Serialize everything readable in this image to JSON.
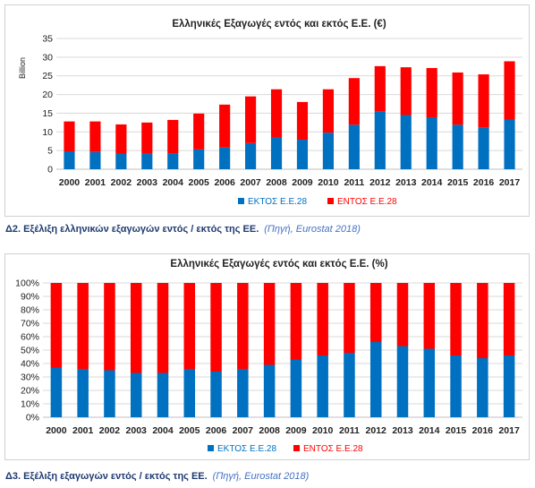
{
  "chart_data": [
    {
      "type": "bar",
      "stacked": true,
      "title": "Ελληνικές Εξαγωγές εντός και εκτός Ε.Ε. (€)",
      "ylabel": "Billion",
      "ylim": [
        0,
        35
      ],
      "yticks": [
        "0",
        "5",
        "10",
        "15",
        "20",
        "25",
        "30",
        "35"
      ],
      "categories": [
        "2000",
        "2001",
        "2002",
        "2003",
        "2004",
        "2005",
        "2006",
        "2007",
        "2008",
        "2009",
        "2010",
        "2011",
        "2012",
        "2013",
        "2014",
        "2015",
        "2016",
        "2017"
      ],
      "series": [
        {
          "name": "ΕΚΤΟΣ Ε.Ε.28",
          "color": "#0070c0",
          "values": [
            4.8,
            4.6,
            4.2,
            4.1,
            4.3,
            5.3,
            5.8,
            7.0,
            8.5,
            7.9,
            9.8,
            11.9,
            15.4,
            14.5,
            13.9,
            11.9,
            11.1,
            13.3
          ]
        },
        {
          "name": "ΕΝΤΟΣ Ε.Ε.28",
          "color": "#ff0000",
          "values": [
            8.0,
            8.2,
            7.8,
            8.4,
            8.9,
            9.6,
            11.5,
            12.5,
            12.9,
            10.1,
            11.6,
            12.5,
            12.2,
            12.8,
            13.2,
            14.0,
            14.3,
            15.6
          ]
        }
      ],
      "legend_position": "bottom",
      "grid": true
    },
    {
      "type": "bar",
      "stacked": true,
      "title": "Ελληνικές Εξαγωγές εντός και εκτός Ε.Ε. (%)",
      "ylim": [
        0,
        100
      ],
      "yticks": [
        "0%",
        "10%",
        "20%",
        "30%",
        "40%",
        "50%",
        "60%",
        "70%",
        "80%",
        "90%",
        "100%"
      ],
      "categories": [
        "2000",
        "2001",
        "2002",
        "2003",
        "2004",
        "2005",
        "2006",
        "2007",
        "2008",
        "2009",
        "2010",
        "2011",
        "2012",
        "2013",
        "2014",
        "2015",
        "2016",
        "2017"
      ],
      "series": [
        {
          "name": "ΕΚΤΟΣ Ε.Ε.28",
          "color": "#0070c0",
          "values": [
            37,
            36,
            35,
            33,
            33,
            36,
            34,
            36,
            39,
            43,
            46,
            48,
            56,
            53,
            51,
            46,
            44,
            46
          ]
        },
        {
          "name": "ΕΝΤΟΣ Ε.Ε.28",
          "color": "#ff0000",
          "values": [
            63,
            64,
            65,
            67,
            67,
            64,
            66,
            64,
            61,
            57,
            54,
            52,
            44,
            47,
            49,
            54,
            56,
            54
          ]
        }
      ],
      "legend_position": "bottom",
      "grid": true
    }
  ],
  "captions": {
    "c1": {
      "label": "Δ2. Εξέλιξη ελληνικών εξαγωγών εντός / εκτός της ΕΕ.",
      "source": "(Πηγή, Eurostat 2018)"
    },
    "c2": {
      "label": "Δ3. Εξέλιξη εξαγωγών εντός / εκτός της ΕΕ.",
      "source": "(Πηγή, Eurostat 2018)"
    }
  }
}
